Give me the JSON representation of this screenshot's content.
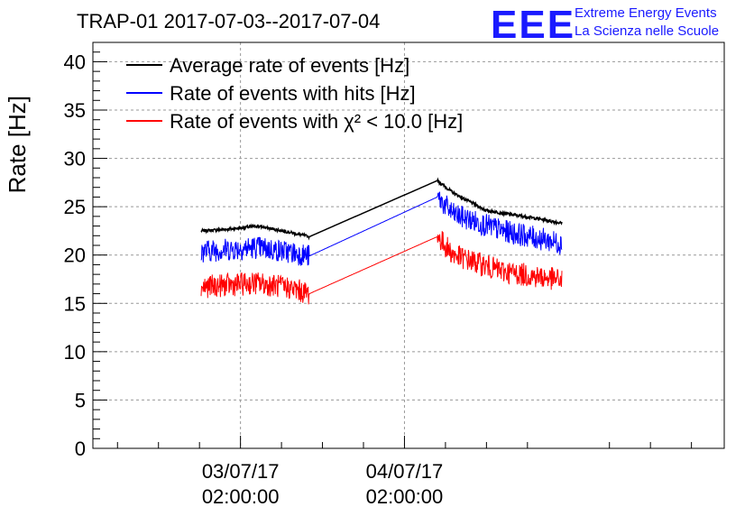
{
  "title": "TRAP-01 2017-07-03--2017-07-04",
  "logo": {
    "mark": "EEE",
    "line1": "Extreme Energy Events",
    "line2": "La Scienza nelle Scuole"
  },
  "colors": {
    "average": "#000000",
    "hits": "#0000ff",
    "chi2": "#ff0000"
  },
  "chart_data": {
    "type": "line",
    "ylabel": "Rate [Hz]",
    "ylim": [
      0,
      42
    ],
    "yticks": [
      0,
      5,
      10,
      15,
      20,
      25,
      30,
      35,
      40
    ],
    "xlim": [
      -0.9,
      2.95
    ],
    "x_ticks": [
      {
        "x": 0,
        "line1": "03/07/17",
        "line2": "02:00:00"
      },
      {
        "x": 1,
        "line1": "04/07/17",
        "line2": "02:00:00"
      }
    ],
    "grid": true,
    "legend_position": "top-left",
    "series": [
      {
        "name": "Average rate of events [Hz]",
        "color": "#000000",
        "points": [
          [
            -0.24,
            22.5
          ],
          [
            -0.05,
            22.7
          ],
          [
            0.1,
            23.0
          ],
          [
            0.26,
            22.5
          ],
          [
            0.42,
            21.9
          ],
          [
            1.2,
            27.7
          ],
          [
            1.3,
            26.4
          ],
          [
            1.5,
            24.6
          ],
          [
            1.8,
            23.8
          ],
          [
            1.96,
            23.3
          ]
        ]
      },
      {
        "name": "Rate of events with hits [Hz]",
        "color": "#0000ff",
        "points": [
          [
            -0.24,
            20.4
          ],
          [
            0.1,
            20.8
          ],
          [
            0.3,
            20.3
          ],
          [
            0.42,
            19.9
          ],
          [
            1.2,
            26.0
          ],
          [
            1.3,
            24.2
          ],
          [
            1.6,
            22.5
          ],
          [
            1.96,
            21.2
          ]
        ]
      },
      {
        "name": "Rate of events with χ² < 10.0 [Hz]",
        "color": "#ff0000",
        "points": [
          [
            -0.24,
            16.7
          ],
          [
            0.1,
            17.1
          ],
          [
            0.3,
            16.6
          ],
          [
            0.42,
            16.0
          ],
          [
            1.2,
            21.9
          ],
          [
            1.3,
            20.0
          ],
          [
            1.6,
            18.3
          ],
          [
            1.96,
            17.4
          ]
        ]
      }
    ]
  }
}
